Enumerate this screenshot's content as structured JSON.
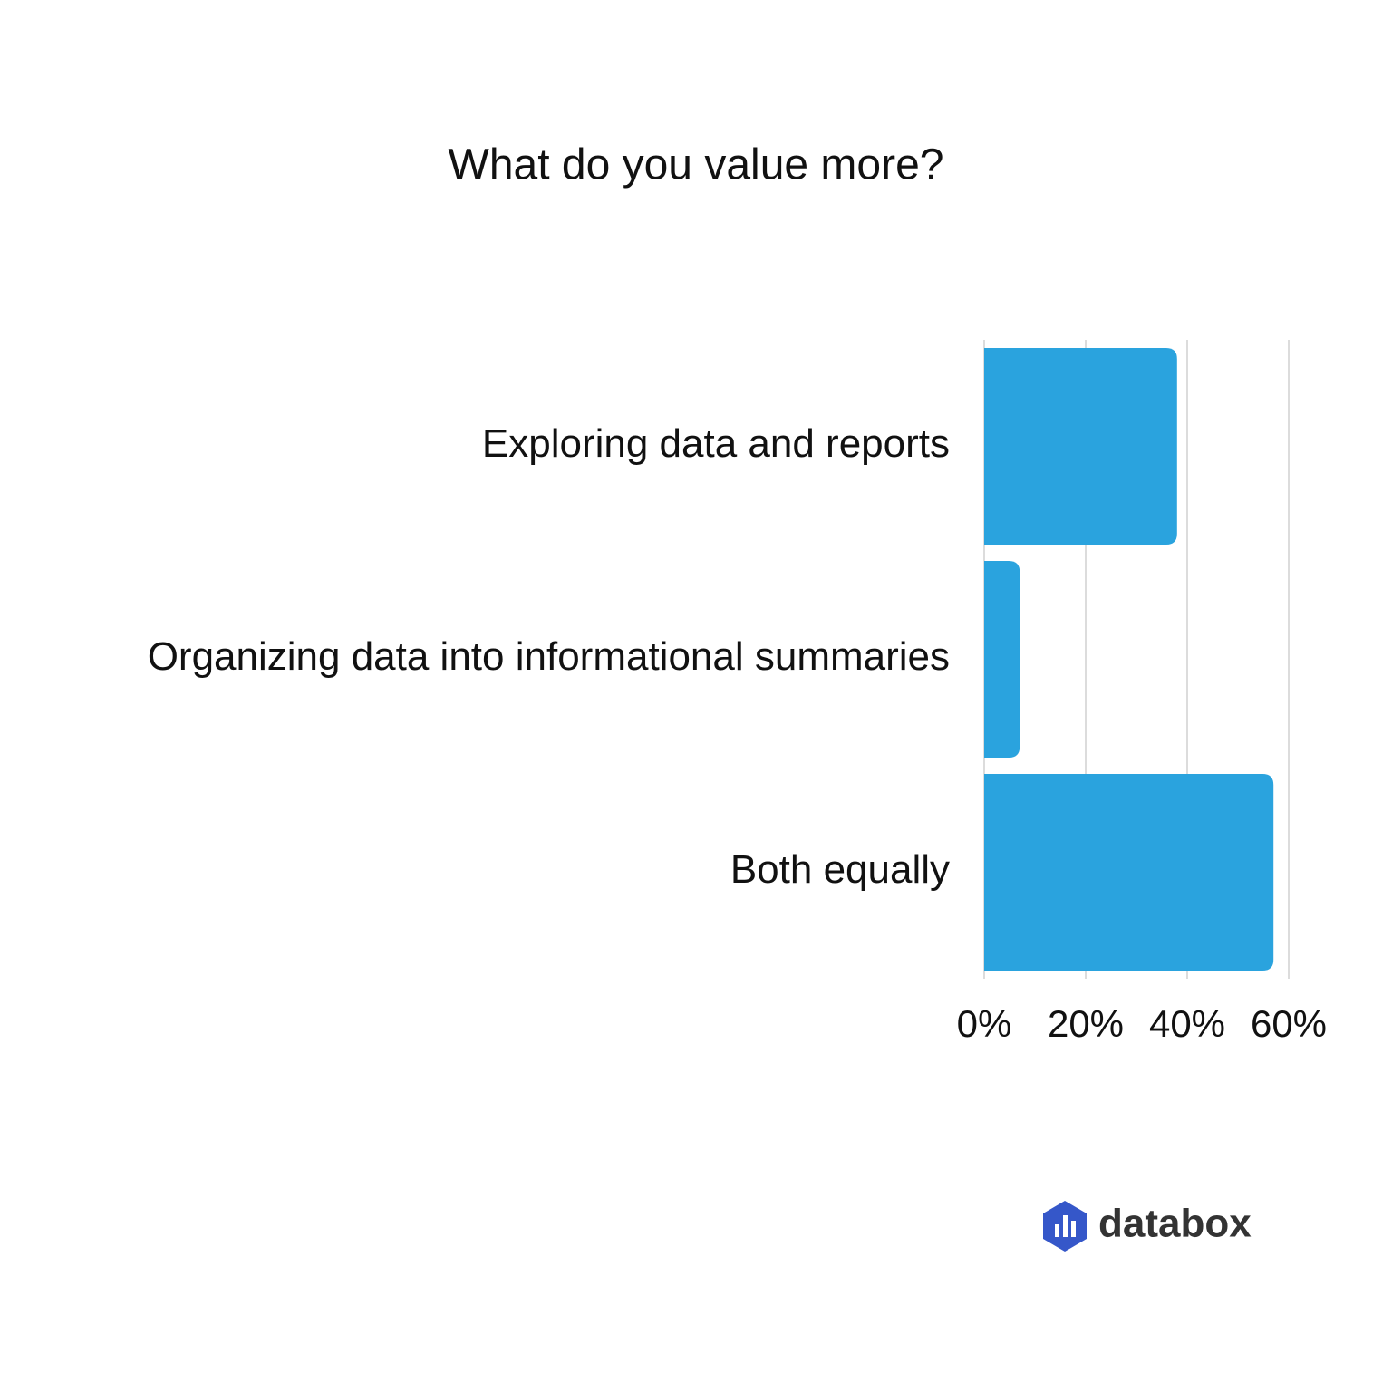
{
  "chart_data": {
    "type": "barh",
    "title": "What do you value more?",
    "categories": [
      "Exploring data and reports",
      "Organizing data into informational summaries",
      "Both equally"
    ],
    "values": [
      38,
      7,
      57
    ],
    "color": "#2aa3de",
    "xlim": [
      0,
      60
    ],
    "xticks": [
      {
        "value": 0,
        "label": "0%"
      },
      {
        "value": 20,
        "label": "20%"
      },
      {
        "value": 40,
        "label": "40%"
      },
      {
        "value": 60,
        "label": "60%"
      }
    ],
    "grid": true
  },
  "logo_text": "databox"
}
